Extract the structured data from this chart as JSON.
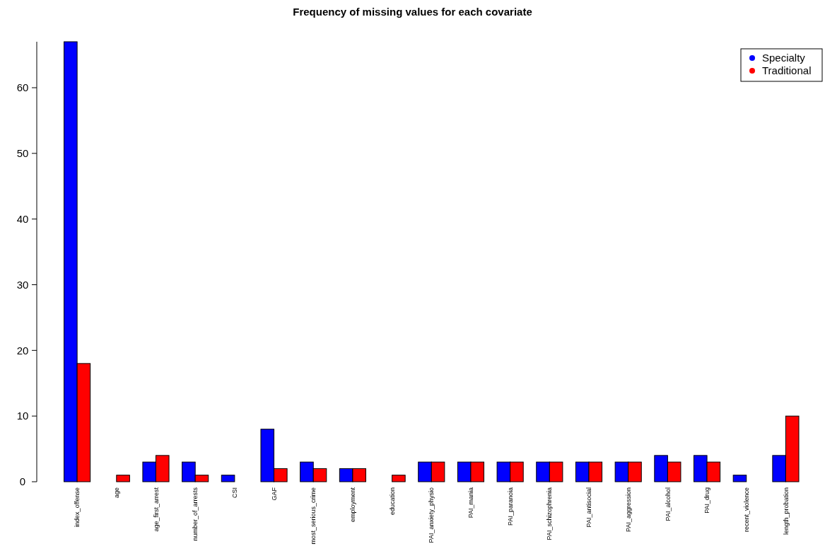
{
  "chart_data": {
    "type": "bar",
    "title": "Frequency of missing values for each covariate",
    "categories": [
      "index_offense",
      "age",
      "age_first_arrest",
      "number_of_arrests",
      "CSI",
      "GAF",
      "most_serious_crime",
      "employment",
      "education",
      "PAI_anxiety_physio",
      "PAI_mania",
      "PAI_paranoia",
      "PAI_schizophrenia",
      "PAI_antisocial",
      "PAI_aggression",
      "PAI_alcohol",
      "PAI_drug",
      "recent_violence",
      "length_probation"
    ],
    "series": [
      {
        "name": "Specialty",
        "color": "#0000ff",
        "values": [
          67,
          0,
          3,
          3,
          1,
          8,
          3,
          2,
          0,
          3,
          3,
          3,
          3,
          3,
          3,
          4,
          4,
          1,
          4
        ]
      },
      {
        "name": "Traditional",
        "color": "#ff0000",
        "values": [
          18,
          1,
          4,
          1,
          0,
          2,
          2,
          2,
          1,
          3,
          3,
          3,
          3,
          3,
          3,
          3,
          3,
          0,
          10
        ]
      }
    ],
    "ylim": [
      0,
      67
    ],
    "yticks": [
      0,
      10,
      20,
      30,
      40,
      50,
      60
    ],
    "legend": "top right",
    "grid": false
  }
}
